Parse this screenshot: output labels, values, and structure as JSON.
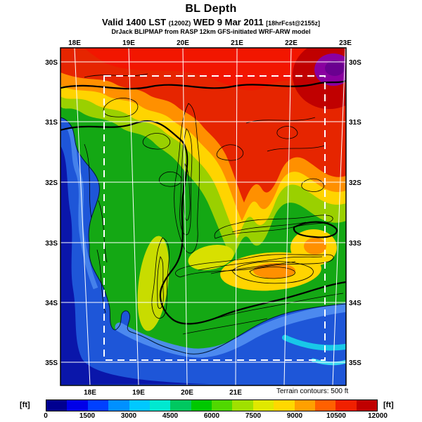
{
  "header": {
    "title": "BL Depth",
    "valid_line": {
      "prefix": "Valid 1400 LST",
      "zulu": "(1200Z)",
      "date": "WED 9 Mar 2011",
      "fcst": "[18hrFcst@2155z]"
    },
    "model_line": "DrJack BLIPMAP from RASP 12km GFS-initiated WRF-ARW model"
  },
  "map": {
    "x_ticks_top": [
      "18E",
      "19E",
      "20E",
      "21E",
      "22E",
      "23E"
    ],
    "x_ticks_bottom": [
      "18E",
      "19E",
      "20E",
      "21E"
    ],
    "y_ticks_left": [
      "30S",
      "31S",
      "32S",
      "33S",
      "34S",
      "35S"
    ],
    "y_ticks_right": [
      "30S",
      "31S",
      "32S",
      "33S",
      "34S",
      "35S"
    ],
    "note": "Terrain contours: 500 ft",
    "inner_domain": "white dashed rectangle",
    "palette": {
      "ocean_deep": "#0a16aa",
      "ocean": "#1e56d8",
      "land_low": "#14a814",
      "contour_lines": "#000000",
      "grid_lines": "#ffffff"
    }
  },
  "colorbar": {
    "unit_left": "[ft]",
    "unit_right": "[ft]",
    "tick_labels": [
      "0",
      "1500",
      "3000",
      "4500",
      "6000",
      "7500",
      "9000",
      "10500",
      "12000"
    ],
    "colors": [
      "#000090",
      "#0000e8",
      "#0040ff",
      "#0090ff",
      "#00c8ff",
      "#00e8d0",
      "#00c860",
      "#00c800",
      "#50d800",
      "#a0e000",
      "#e0e800",
      "#ffd800",
      "#ffa000",
      "#ff6000",
      "#f02000",
      "#c00000"
    ]
  },
  "chart_data": {
    "type": "heatmap",
    "title": "BL Depth",
    "valid": "Valid 1400 LST (1200Z) WED 9 Mar 2011 [18hrFcst@2155z]",
    "model": "DrJack BLIPMAP from RASP 12km GFS-initiated WRF-ARW model",
    "units": "ft",
    "scale": {
      "min": 0,
      "max": 12000,
      "tick_step": 1500,
      "n_colors": 16
    },
    "terrain_contour_interval_ft": 500,
    "x": [
      "18E",
      "19E",
      "20E",
      "21E",
      "22E",
      "23E"
    ],
    "y": [
      "30S",
      "31S",
      "32S",
      "33S",
      "34S",
      "35S"
    ],
    "values_estimated_ft": [
      [
        9000,
        10500,
        11000,
        11500,
        12000,
        12000
      ],
      [
        3000,
        9000,
        9500,
        10500,
        10500,
        10500
      ],
      [
        1500,
        4500,
        7500,
        9000,
        8000,
        9000
      ],
      [
        1500,
        4500,
        5500,
        6500,
        6000,
        5000
      ],
      [
        1500,
        3500,
        4000,
        5000,
        4000,
        2500
      ],
      [
        1500,
        1500,
        2000,
        2500,
        2500,
        2500
      ]
    ],
    "notes": "Filled-contour boundary-layer depth over the Western Cape, South Africa. Low values (blue) over ocean along west and south coasts; mid values (green/yellow) over coastal land and Karoo; high values (orange/red, up to ~12000 ft, small purple max) over the northern interior. Black terrain contours every 500 ft; white lat/lon grid; white dashed inner model domain."
  }
}
